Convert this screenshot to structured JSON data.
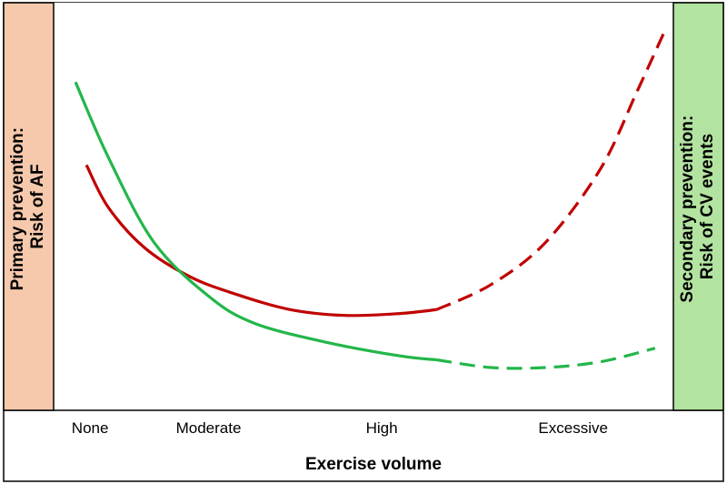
{
  "chart_data": {
    "type": "line",
    "title": "",
    "xlabel": "Exercise volume",
    "ylabel_left": [
      "Primary prevention:",
      "Risk of AF"
    ],
    "ylabel_right": [
      "Secondary prevention:",
      "Risk of CV events"
    ],
    "categories": [
      "None",
      "Moderate",
      "High",
      "Excessive"
    ],
    "xlim": [
      0,
      3.4
    ],
    "ylim": [
      0,
      10
    ],
    "colors": {
      "left_panel": "#f6c9ad",
      "right_panel": "#b3e3a0",
      "red": "#c00000",
      "green": "#23b64a"
    },
    "series": [
      {
        "name": "Risk of AF",
        "color": "#c00000",
        "solid": {
          "x": [
            0.18,
            0.3,
            0.5,
            0.75,
            1.0,
            1.3,
            1.6,
            1.9,
            2.1
          ],
          "y": [
            6.1,
            5.0,
            3.95,
            3.2,
            2.75,
            2.35,
            2.2,
            2.25,
            2.35
          ]
        },
        "dashed": {
          "x": [
            2.1,
            2.4,
            2.7,
            3.0,
            3.2,
            3.35
          ],
          "y": [
            2.35,
            3.0,
            4.1,
            6.0,
            8.0,
            9.55
          ]
        }
      },
      {
        "name": "Risk of CV events",
        "color": "#23b64a",
        "solid": {
          "x": [
            0.12,
            0.3,
            0.55,
            0.85,
            1.1,
            1.5,
            1.9,
            2.1
          ],
          "y": [
            8.25,
            6.3,
            4.1,
            2.7,
            2.0,
            1.5,
            1.15,
            1.05
          ]
        },
        "dashed": {
          "x": [
            2.1,
            2.4,
            2.7,
            3.0,
            3.3
          ],
          "y": [
            1.05,
            0.85,
            0.85,
            1.0,
            1.35
          ]
        }
      }
    ]
  }
}
